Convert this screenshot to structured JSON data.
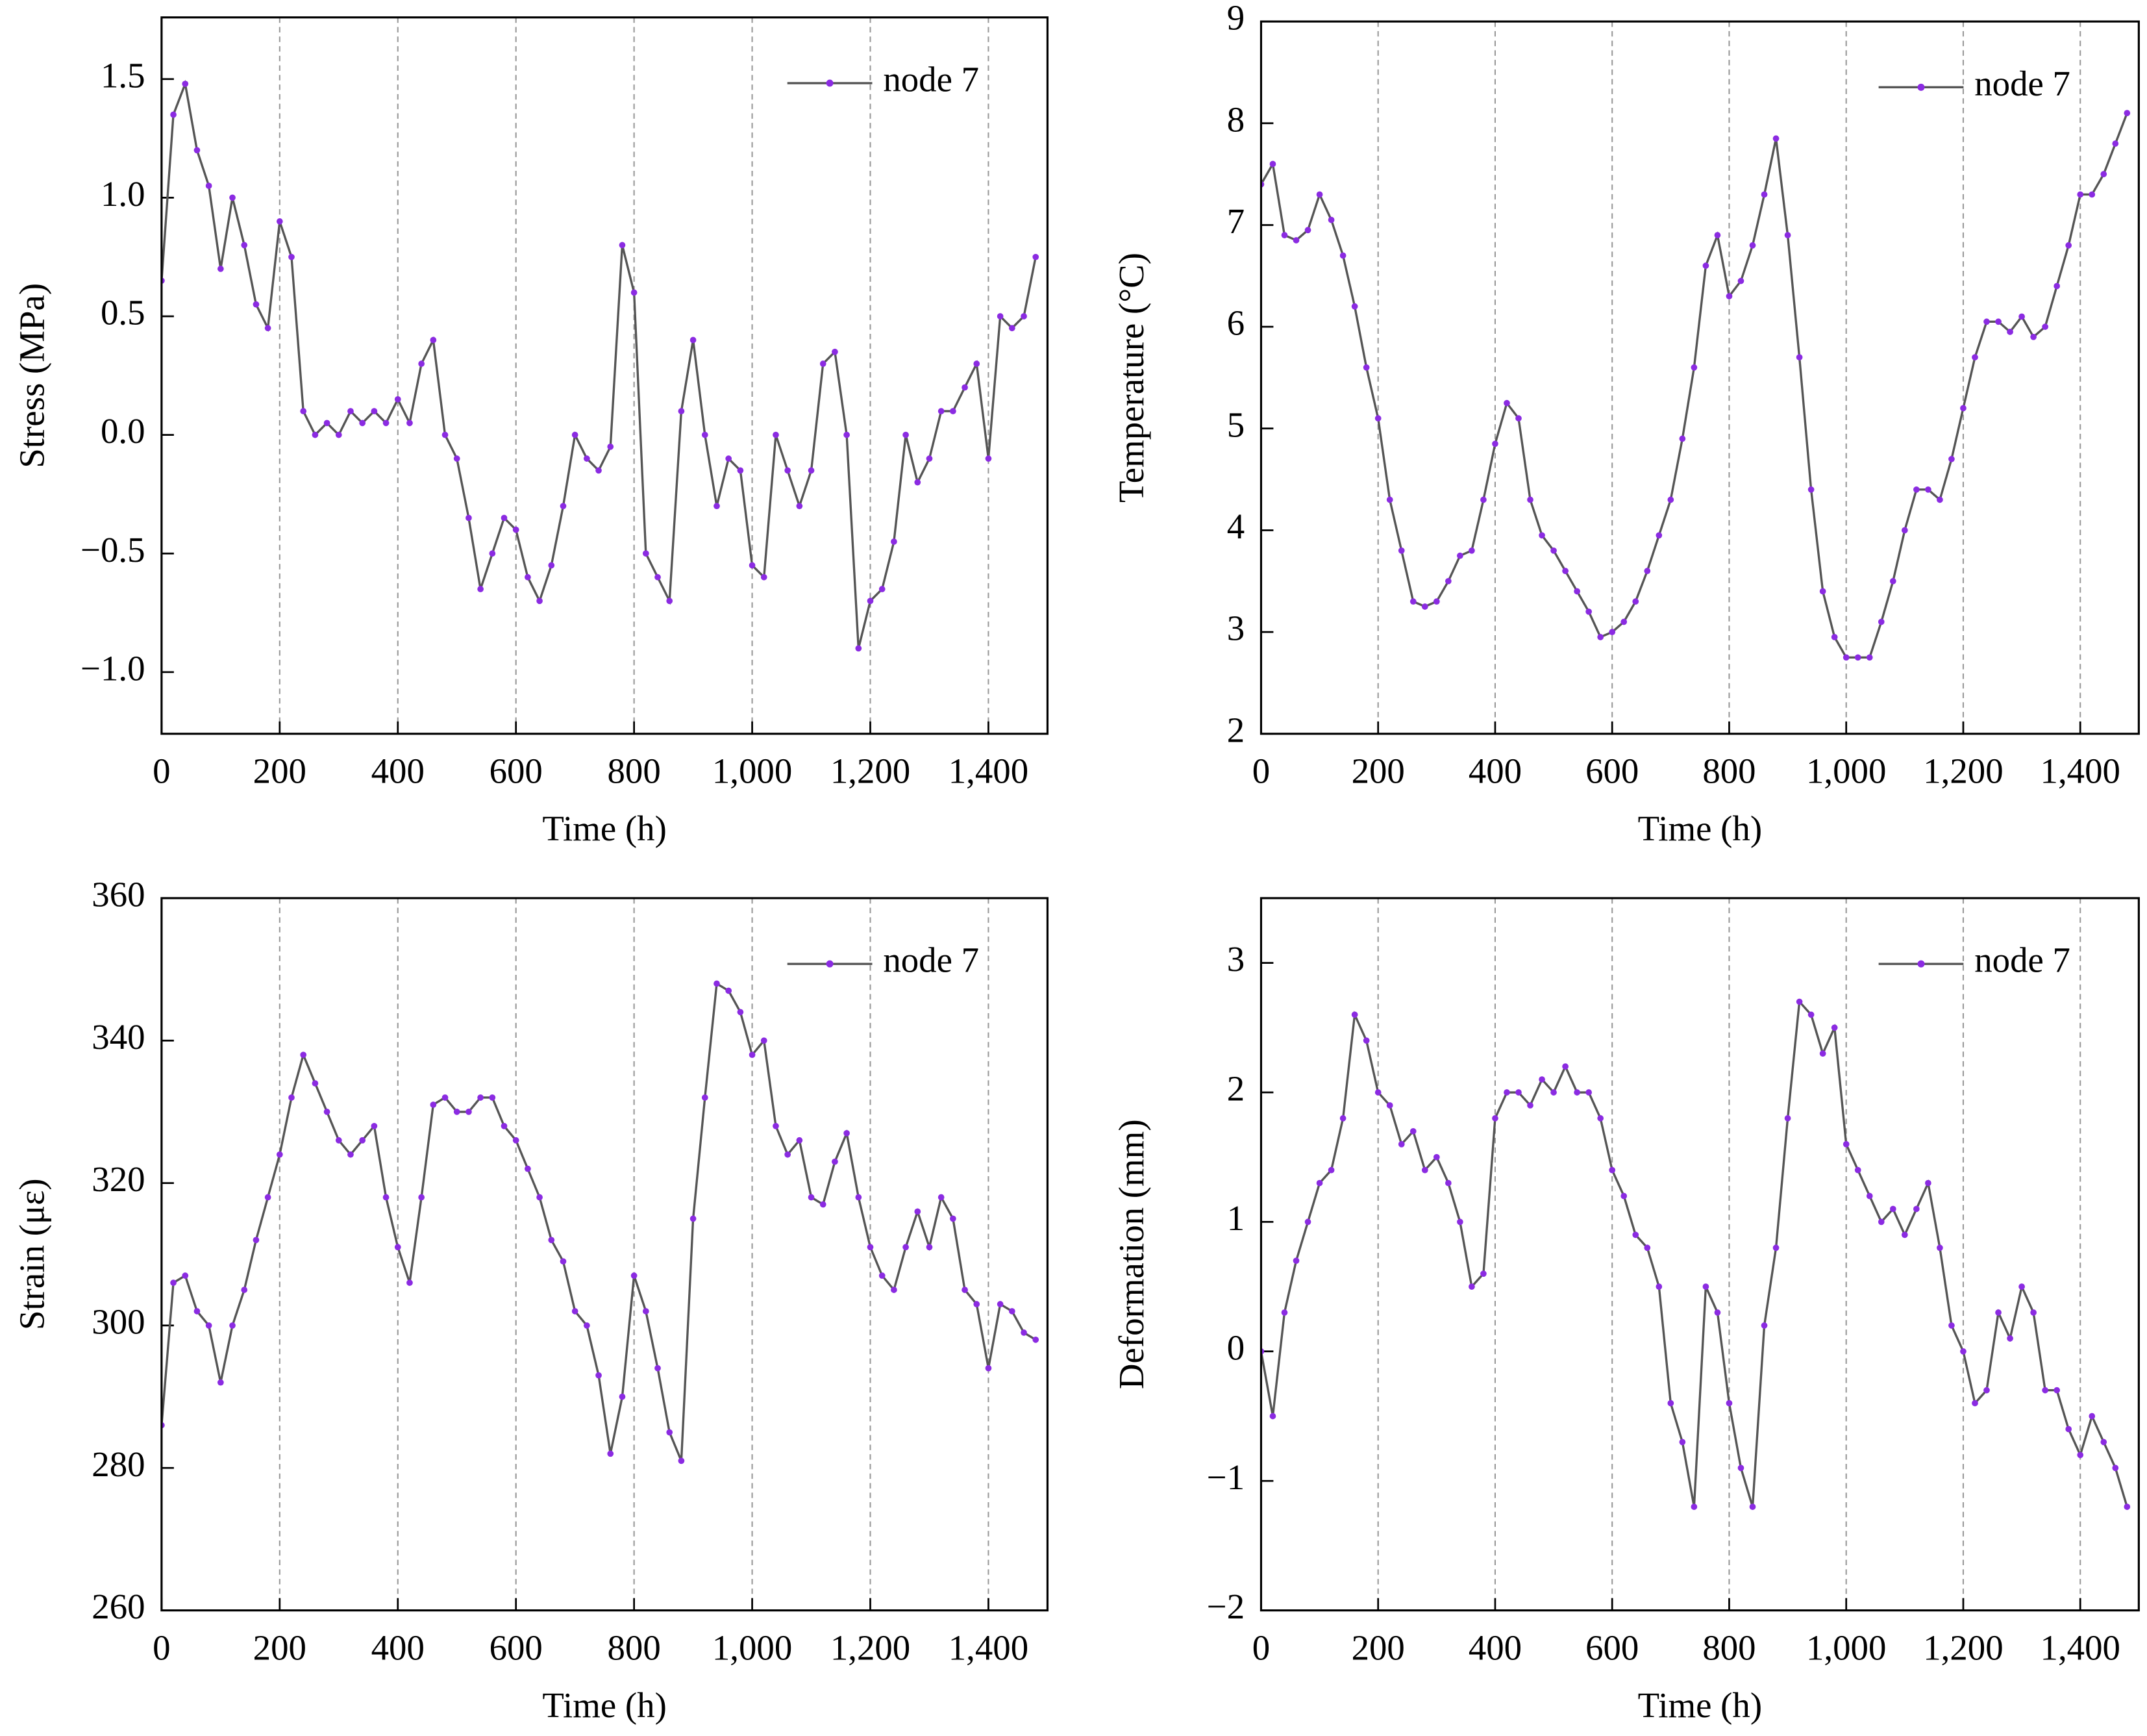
{
  "chart_data": [
    {
      "type": "line",
      "x_label": "Time (h)",
      "y_label": "Stress (MPa)",
      "grid": true,
      "legend": "upper right",
      "xlim": [
        0,
        1500
      ],
      "ylim": [
        -1.26,
        1.76
      ],
      "xticks": [
        0,
        200,
        400,
        600,
        800,
        {
          "value": 1000,
          "label": "1,000"
        },
        {
          "value": 1200,
          "label": "1,200"
        },
        {
          "value": 1400,
          "label": "1,400"
        }
      ],
      "yticks": [
        {
          "value": -1,
          "label": "−1.0"
        },
        {
          "value": -0.5,
          "label": "−0.5"
        },
        {
          "value": 0,
          "label": "0.0"
        },
        0.5,
        {
          "value": 1,
          "label": "1.0"
        },
        1.5
      ],
      "x": [
        0,
        20,
        40,
        60,
        80,
        100,
        120,
        140,
        160,
        180,
        200,
        220,
        240,
        260,
        280,
        300,
        320,
        340,
        360,
        380,
        400,
        420,
        440,
        460,
        480,
        500,
        520,
        540,
        560,
        580,
        600,
        620,
        640,
        660,
        680,
        700,
        720,
        740,
        760,
        780,
        800,
        820,
        840,
        860,
        880,
        900,
        920,
        940,
        960,
        980,
        1000,
        1020,
        1040,
        1060,
        1080,
        1100,
        1120,
        1140,
        1160,
        1180,
        1200,
        1220,
        1240,
        1260,
        1280,
        1300,
        1320,
        1340,
        1360,
        1380,
        1400,
        1420,
        1440,
        1460,
        1480
      ],
      "series": [
        {
          "name": "node 7",
          "color": "#8b2be2",
          "line_color": "#555555",
          "values": [
            0.65,
            1.35,
            1.48,
            1.2,
            1.05,
            0.7,
            1.0,
            0.8,
            0.55,
            0.45,
            0.9,
            0.75,
            0.1,
            0.0,
            0.05,
            0.0,
            0.1,
            0.05,
            0.1,
            0.05,
            0.15,
            0.05,
            0.3,
            0.4,
            0.0,
            -0.1,
            -0.35,
            -0.65,
            -0.5,
            -0.35,
            -0.4,
            -0.6,
            -0.7,
            -0.55,
            -0.3,
            0.0,
            -0.1,
            -0.15,
            -0.05,
            0.8,
            0.6,
            -0.5,
            -0.6,
            -0.7,
            0.1,
            0.4,
            0.0,
            -0.3,
            -0.1,
            -0.15,
            -0.55,
            -0.6,
            0.0,
            -0.15,
            -0.3,
            -0.15,
            0.3,
            0.35,
            0.0,
            -0.9,
            -0.7,
            -0.65,
            -0.45,
            0.0,
            -0.2,
            -0.1,
            0.1,
            0.1,
            0.2,
            0.3,
            -0.1,
            0.5,
            0.45,
            0.5,
            0.75
          ]
        }
      ]
    },
    {
      "type": "line",
      "x_label": "Time (h)",
      "y_label": "Temperature (°C)",
      "grid": true,
      "legend": "upper right",
      "xlim": [
        0,
        1500
      ],
      "ylim": [
        2,
        9
      ],
      "xticks": [
        0,
        200,
        400,
        600,
        800,
        {
          "value": 1000,
          "label": "1,000"
        },
        {
          "value": 1200,
          "label": "1,200"
        },
        {
          "value": 1400,
          "label": "1,400"
        }
      ],
      "yticks": [
        2,
        3,
        4,
        5,
        6,
        7,
        8,
        9
      ],
      "x": [
        0,
        20,
        40,
        60,
        80,
        100,
        120,
        140,
        160,
        180,
        200,
        220,
        240,
        260,
        280,
        300,
        320,
        340,
        360,
        380,
        400,
        420,
        440,
        460,
        480,
        500,
        520,
        540,
        560,
        580,
        600,
        620,
        640,
        660,
        680,
        700,
        720,
        740,
        760,
        780,
        800,
        820,
        840,
        860,
        880,
        900,
        920,
        940,
        960,
        980,
        1000,
        1020,
        1040,
        1060,
        1080,
        1100,
        1120,
        1140,
        1160,
        1180,
        1200,
        1220,
        1240,
        1260,
        1280,
        1300,
        1320,
        1340,
        1360,
        1380,
        1400,
        1420,
        1440,
        1460,
        1480
      ],
      "series": [
        {
          "name": "node 7",
          "color": "#8b2be2",
          "line_color": "#555555",
          "values": [
            7.4,
            7.6,
            6.9,
            6.85,
            6.95,
            7.3,
            7.05,
            6.7,
            6.2,
            5.6,
            5.1,
            4.3,
            3.8,
            3.3,
            3.25,
            3.3,
            3.5,
            3.75,
            3.8,
            4.3,
            4.85,
            5.25,
            5.1,
            4.3,
            3.95,
            3.8,
            3.6,
            3.4,
            3.2,
            2.95,
            3.0,
            3.1,
            3.3,
            3.6,
            3.95,
            4.3,
            4.9,
            5.6,
            6.6,
            6.9,
            6.3,
            6.45,
            6.8,
            7.3,
            7.85,
            6.9,
            5.7,
            4.4,
            3.4,
            2.95,
            2.75,
            2.75,
            2.75,
            3.1,
            3.5,
            4.0,
            4.4,
            4.4,
            4.3,
            4.7,
            5.2,
            5.7,
            6.05,
            6.05,
            5.95,
            6.1,
            5.9,
            6.0,
            6.4,
            6.8,
            7.3,
            7.3,
            7.5,
            7.8,
            8.1
          ]
        }
      ]
    },
    {
      "type": "line",
      "x_label": "Time (h)",
      "y_label": "Strain (με)",
      "grid": true,
      "legend": "upper right",
      "xlim": [
        0,
        1500
      ],
      "ylim": [
        260,
        360
      ],
      "xticks": [
        0,
        200,
        400,
        600,
        800,
        {
          "value": 1000,
          "label": "1,000"
        },
        {
          "value": 1200,
          "label": "1,200"
        },
        {
          "value": 1400,
          "label": "1,400"
        }
      ],
      "yticks": [
        260,
        280,
        300,
        320,
        340,
        360
      ],
      "x": [
        0,
        20,
        40,
        60,
        80,
        100,
        120,
        140,
        160,
        180,
        200,
        220,
        240,
        260,
        280,
        300,
        320,
        340,
        360,
        380,
        400,
        420,
        440,
        460,
        480,
        500,
        520,
        540,
        560,
        580,
        600,
        620,
        640,
        660,
        680,
        700,
        720,
        740,
        760,
        780,
        800,
        820,
        840,
        860,
        880,
        900,
        920,
        940,
        960,
        980,
        1000,
        1020,
        1040,
        1060,
        1080,
        1100,
        1120,
        1140,
        1160,
        1180,
        1200,
        1220,
        1240,
        1260,
        1280,
        1300,
        1320,
        1340,
        1360,
        1380,
        1400,
        1420,
        1440,
        1460,
        1480
      ],
      "series": [
        {
          "name": "node 7",
          "color": "#8b2be2",
          "line_color": "#555555",
          "values": [
            286,
            306,
            307,
            302,
            300,
            292,
            300,
            305,
            312,
            318,
            324,
            332,
            338,
            334,
            330,
            326,
            324,
            326,
            328,
            318,
            311,
            306,
            318,
            331,
            332,
            330,
            330,
            332,
            332,
            328,
            326,
            322,
            318,
            312,
            309,
            302,
            300,
            293,
            282,
            290,
            307,
            302,
            294,
            285,
            281,
            315,
            332,
            348,
            347,
            344,
            338,
            340,
            328,
            324,
            326,
            318,
            317,
            323,
            327,
            318,
            311,
            307,
            305,
            311,
            316,
            311,
            318,
            315,
            305,
            303,
            294,
            303,
            302,
            299,
            298
          ]
        }
      ]
    },
    {
      "type": "line",
      "x_label": "Time (h)",
      "y_label": "Deformation (mm)",
      "grid": true,
      "legend": "upper right",
      "xlim": [
        0,
        1500
      ],
      "ylim": [
        -2,
        3.5
      ],
      "xticks": [
        0,
        200,
        400,
        600,
        800,
        {
          "value": 1000,
          "label": "1,000"
        },
        {
          "value": 1200,
          "label": "1,200"
        },
        {
          "value": 1400,
          "label": "1,400"
        }
      ],
      "yticks": [
        {
          "value": -2,
          "label": "−2"
        },
        {
          "value": -1,
          "label": "−1"
        },
        0,
        1,
        2,
        3
      ],
      "x": [
        0,
        20,
        40,
        60,
        80,
        100,
        120,
        140,
        160,
        180,
        200,
        220,
        240,
        260,
        280,
        300,
        320,
        340,
        360,
        380,
        400,
        420,
        440,
        460,
        480,
        500,
        520,
        540,
        560,
        580,
        600,
        620,
        640,
        660,
        680,
        700,
        720,
        740,
        760,
        780,
        800,
        820,
        840,
        860,
        880,
        900,
        920,
        940,
        960,
        980,
        1000,
        1020,
        1040,
        1060,
        1080,
        1100,
        1120,
        1140,
        1160,
        1180,
        1200,
        1220,
        1240,
        1260,
        1280,
        1300,
        1320,
        1340,
        1360,
        1380,
        1400,
        1420,
        1440,
        1460,
        1480
      ],
      "series": [
        {
          "name": "node 7",
          "color": "#8b2be2",
          "line_color": "#555555",
          "values": [
            0,
            -0.5,
            0.3,
            0.7,
            1.0,
            1.3,
            1.4,
            1.8,
            2.6,
            2.4,
            2.0,
            1.9,
            1.6,
            1.7,
            1.4,
            1.5,
            1.3,
            1.0,
            0.5,
            0.6,
            1.8,
            2.0,
            2.0,
            1.9,
            2.1,
            2.0,
            2.2,
            2.0,
            2.0,
            1.8,
            1.4,
            1.2,
            0.9,
            0.8,
            0.5,
            -0.4,
            -0.7,
            -1.2,
            0.5,
            0.3,
            -0.4,
            -0.9,
            -1.2,
            0.2,
            0.8,
            1.8,
            2.7,
            2.6,
            2.3,
            2.5,
            1.6,
            1.4,
            1.2,
            1.0,
            1.1,
            0.9,
            1.1,
            1.3,
            0.8,
            0.2,
            0.0,
            -0.4,
            -0.3,
            0.3,
            0.1,
            0.5,
            0.3,
            -0.3,
            -0.3,
            -0.6,
            -0.8,
            -0.5,
            -0.7,
            -0.9,
            -1.2
          ]
        }
      ]
    }
  ]
}
